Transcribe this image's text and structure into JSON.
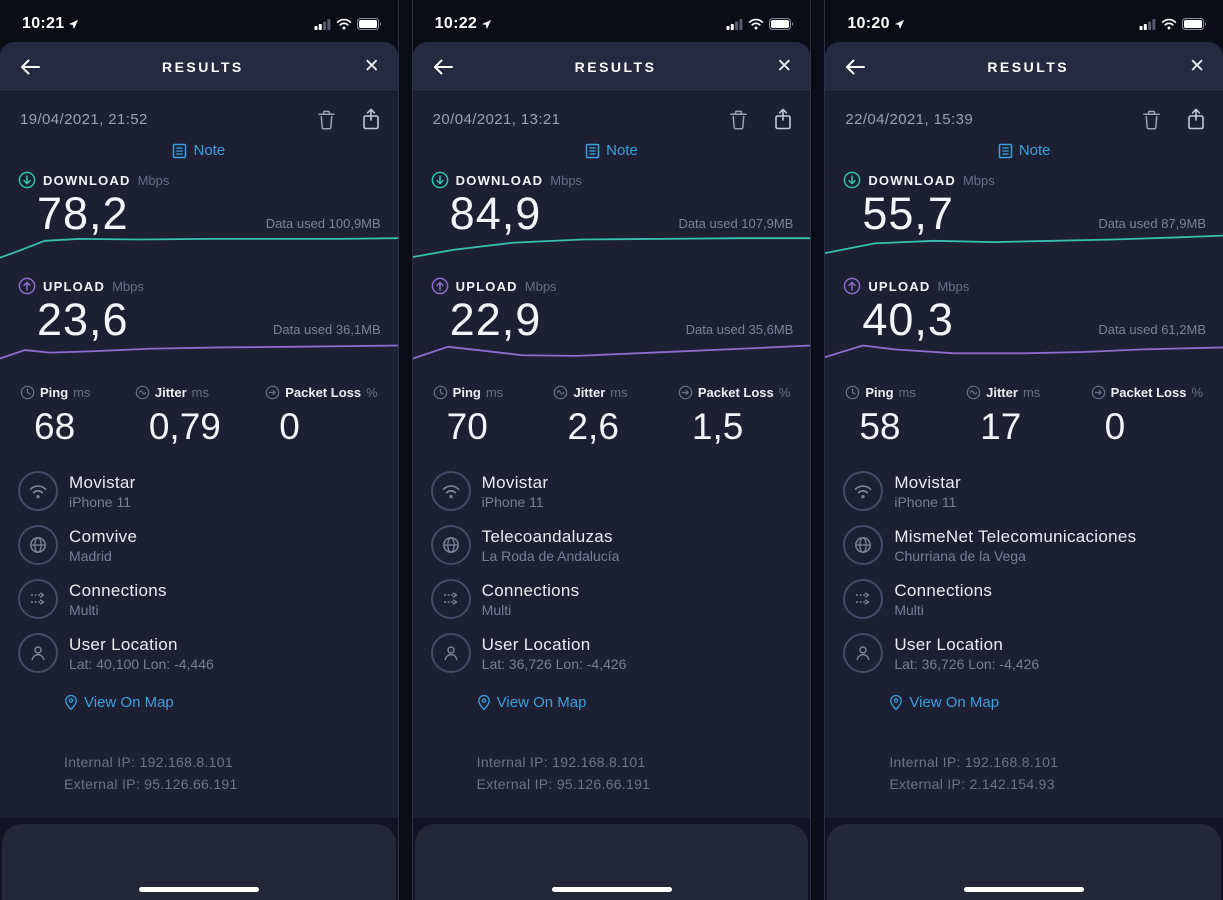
{
  "labels": {
    "results": "RESULTS",
    "note": "Note",
    "download": "DOWNLOAD",
    "upload": "UPLOAD",
    "mbps": "Mbps",
    "ping": "Ping",
    "jitter": "Jitter",
    "packet_loss": "Packet Loss",
    "ms": "ms",
    "percent": "%",
    "view_on_map": "View On Map",
    "close": "✕"
  },
  "colors": {
    "download_line": "#35c0ae",
    "upload_line": "#8e6cd0",
    "link_blue": "#3aa0e0",
    "card_bg": "#1d2033",
    "header_bg": "#262a40"
  },
  "panels": [
    {
      "status_time": "10:21",
      "date": "19/04/2021, 21:52",
      "download": {
        "value": "78,2",
        "data_used": "Data used 100,9MB"
      },
      "upload": {
        "value": "23,6",
        "data_used": "Data used 36,1MB"
      },
      "ping": "68",
      "jitter": "0,79",
      "packet_loss": "0",
      "wifi": {
        "title": "Movistar",
        "subtitle": "iPhone 11"
      },
      "server": {
        "title": "Comvive",
        "subtitle": "Madrid"
      },
      "connections": {
        "title": "Connections",
        "subtitle": "Multi"
      },
      "location": {
        "title": "User Location",
        "subtitle": "Lat: 40,100  Lon: -4,446"
      },
      "internal_ip": "Internal IP: 192.168.8.101",
      "external_ip": "External IP: 95.126.66.191",
      "download_line": [
        [
          0,
          38
        ],
        [
          18,
          28
        ],
        [
          45,
          12
        ],
        [
          80,
          9
        ],
        [
          140,
          10
        ],
        [
          210,
          9
        ],
        [
          290,
          9
        ],
        [
          340,
          9
        ],
        [
          400,
          8
        ]
      ],
      "upload_line": [
        [
          0,
          30
        ],
        [
          25,
          17
        ],
        [
          50,
          21
        ],
        [
          90,
          19
        ],
        [
          150,
          15
        ],
        [
          220,
          13
        ],
        [
          290,
          12
        ],
        [
          350,
          11
        ],
        [
          400,
          10
        ]
      ]
    },
    {
      "status_time": "10:22",
      "date": "20/04/2021, 13:21",
      "download": {
        "value": "84,9",
        "data_used": "Data used 107,9MB"
      },
      "upload": {
        "value": "22,9",
        "data_used": "Data used 35,6MB"
      },
      "ping": "70",
      "jitter": "2,6",
      "packet_loss": "1,5",
      "wifi": {
        "title": "Movistar",
        "subtitle": "iPhone 11"
      },
      "server": {
        "title": "Telecoandaluzas",
        "subtitle": "La Roda de Andalucía"
      },
      "connections": {
        "title": "Connections",
        "subtitle": "Multi"
      },
      "location": {
        "title": "User Location",
        "subtitle": "Lat: 36,726  Lon: -4,426"
      },
      "internal_ip": "Internal IP: 192.168.8.101",
      "external_ip": "External IP: 95.126.66.191",
      "download_line": [
        [
          0,
          37
        ],
        [
          40,
          26
        ],
        [
          100,
          15
        ],
        [
          170,
          10
        ],
        [
          250,
          9
        ],
        [
          330,
          8
        ],
        [
          400,
          8
        ]
      ],
      "upload_line": [
        [
          0,
          30
        ],
        [
          35,
          12
        ],
        [
          65,
          17
        ],
        [
          110,
          25
        ],
        [
          165,
          26
        ],
        [
          225,
          22
        ],
        [
          285,
          18
        ],
        [
          345,
          14
        ],
        [
          400,
          10
        ]
      ]
    },
    {
      "status_time": "10:20",
      "date": "22/04/2021, 15:39",
      "download": {
        "value": "55,7",
        "data_used": "Data used 87,9MB"
      },
      "upload": {
        "value": "40,3",
        "data_used": "Data used 61,2MB"
      },
      "ping": "58",
      "jitter": "17",
      "packet_loss": "0",
      "wifi": {
        "title": "Movistar",
        "subtitle": "iPhone 11"
      },
      "server": {
        "title": "MismeNet Telecomunicaciones",
        "subtitle": "Churriana de la Vega"
      },
      "connections": {
        "title": "Connections",
        "subtitle": "Multi"
      },
      "location": {
        "title": "User Location",
        "subtitle": "Lat: 36,726  Lon: -4,426"
      },
      "internal_ip": "Internal IP: 192.168.8.101",
      "external_ip": "External IP: 2.142.154.93",
      "download_line": [
        [
          0,
          31
        ],
        [
          50,
          16
        ],
        [
          110,
          12
        ],
        [
          170,
          14
        ],
        [
          230,
          12
        ],
        [
          290,
          10
        ],
        [
          350,
          7
        ],
        [
          400,
          4
        ]
      ],
      "upload_line": [
        [
          0,
          28
        ],
        [
          38,
          10
        ],
        [
          70,
          16
        ],
        [
          130,
          22
        ],
        [
          200,
          22
        ],
        [
          260,
          20
        ],
        [
          320,
          16
        ],
        [
          400,
          13
        ]
      ]
    }
  ]
}
